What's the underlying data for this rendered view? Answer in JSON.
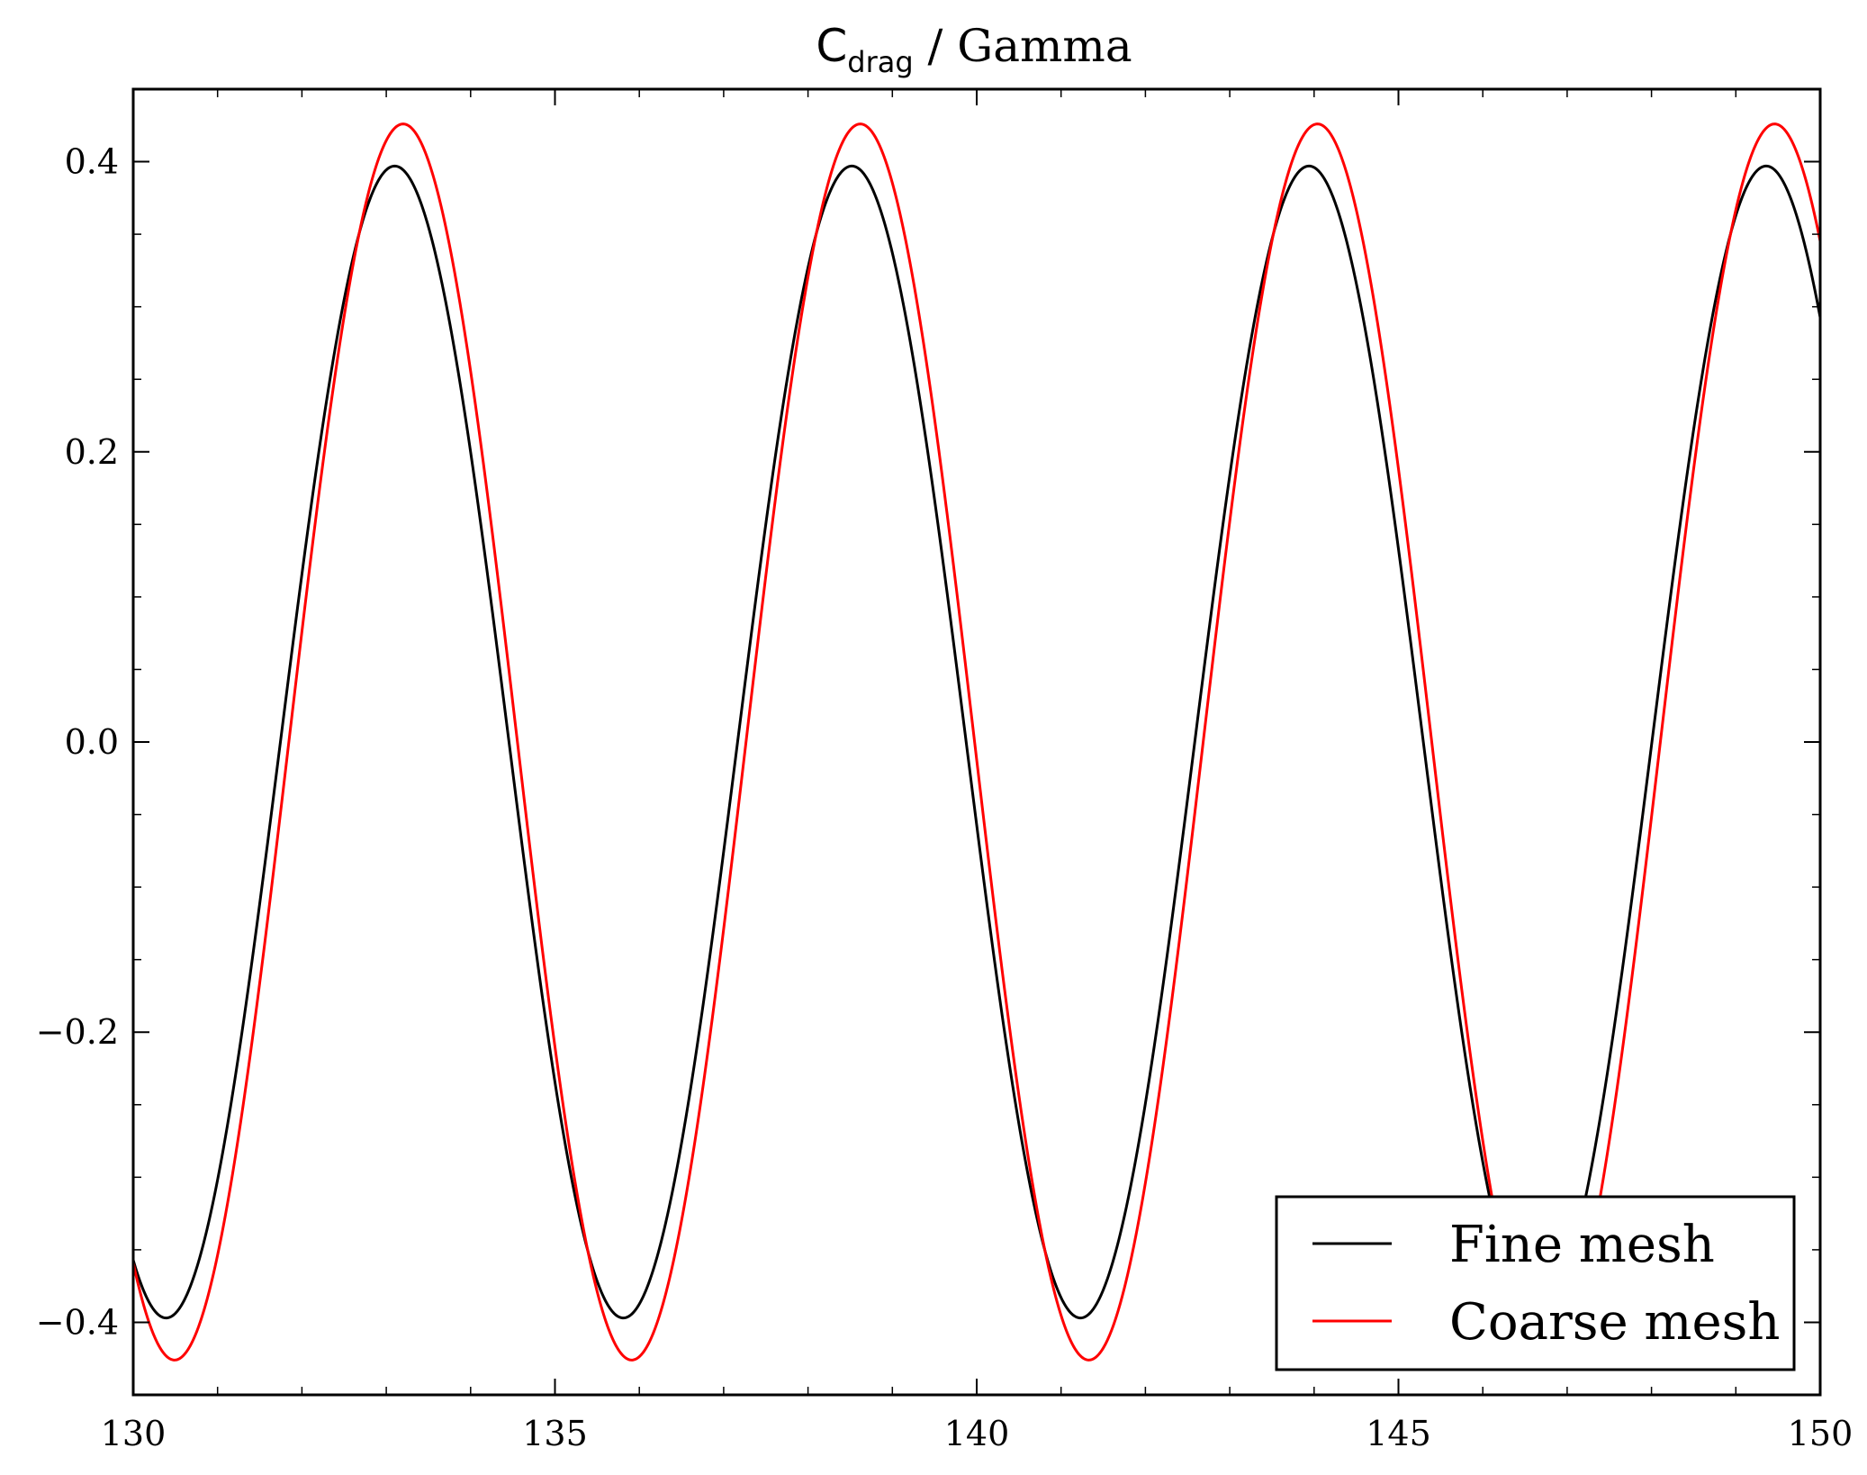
{
  "chart_data": {
    "type": "line",
    "title": {
      "symbol": "C",
      "subscript": "drag",
      "rest": " / Gamma"
    },
    "xlabel": "",
    "ylabel": "",
    "xlim": [
      130,
      150
    ],
    "ylim": [
      -0.45,
      0.45
    ],
    "xticks": [
      {
        "value": 130,
        "label": "130"
      },
      {
        "value": 135,
        "label": "135"
      },
      {
        "value": 140,
        "label": "140"
      },
      {
        "value": 145,
        "label": "145"
      },
      {
        "value": 150,
        "label": "150"
      }
    ],
    "yticks": [
      {
        "value": -0.4,
        "label": "−0.4"
      },
      {
        "value": -0.2,
        "label": "−0.2"
      },
      {
        "value": 0.0,
        "label": "0.0"
      },
      {
        "value": 0.2,
        "label": "0.2"
      },
      {
        "value": 0.4,
        "label": "0.4"
      }
    ],
    "x_minor_step": 1,
    "y_minor_step": 0.05,
    "grid": false,
    "legend_position": "bottom-right",
    "series": [
      {
        "name": "Fine mesh",
        "color": "#000000",
        "amplitude": 0.397,
        "period": 5.42,
        "peak_x": [
          133.1,
          138.5,
          143.94,
          149.37
        ],
        "trough_x": [
          130.4,
          135.81,
          141.24
        ],
        "x_start": 130,
        "x_end": 150
      },
      {
        "name": "Coarse mesh",
        "color": "#ff0000",
        "amplitude": 0.426,
        "period": 5.42,
        "peak_x": [
          133.2,
          138.64,
          144.06,
          149.49
        ],
        "trough_x": [
          130.5,
          135.92,
          141.35
        ],
        "x_start": 130,
        "x_end": 150
      }
    ]
  }
}
